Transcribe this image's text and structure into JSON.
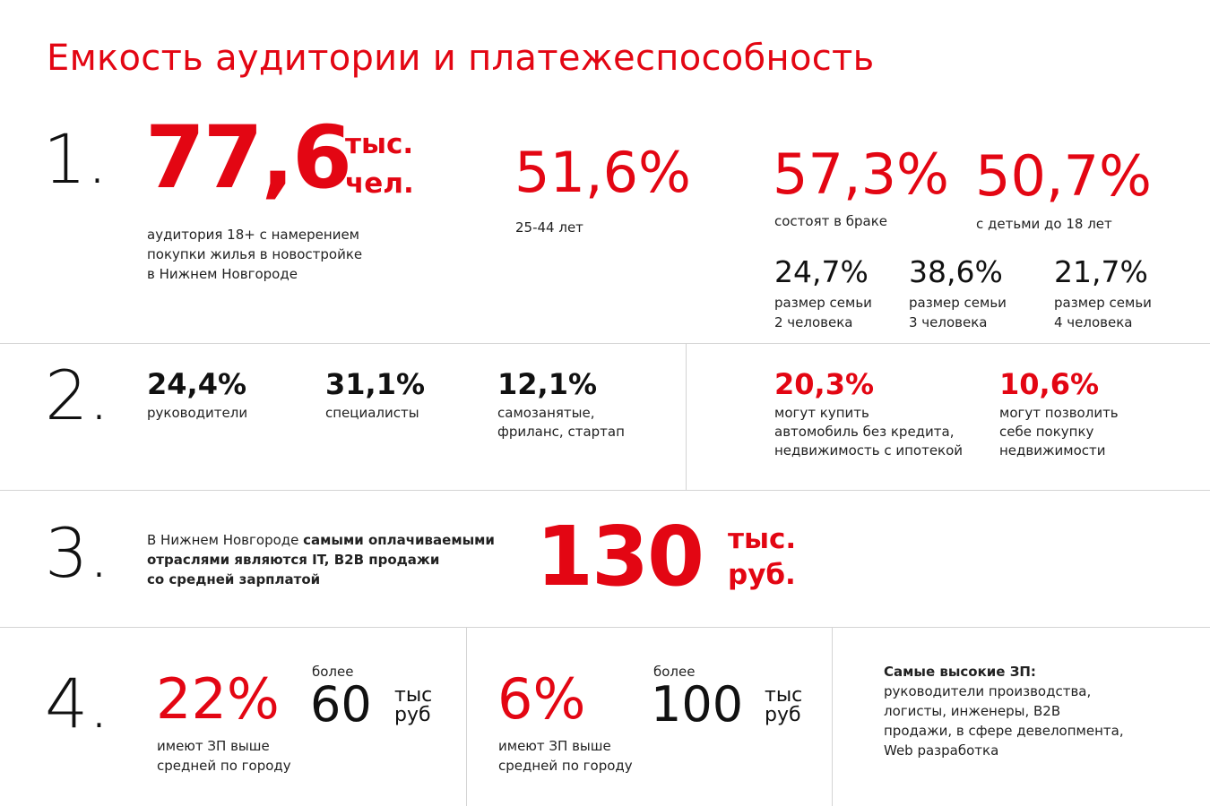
{
  "title": "Емкость аудитории и платежеспособность",
  "colors": {
    "accent": "#e30613",
    "text": "#1a1a1a",
    "divider": "#d4d4d4"
  },
  "sections": {
    "s1": {
      "number": "1.",
      "main_value": "77,6",
      "main_unit_line1": "тыс.",
      "main_unit_line2": "чел.",
      "main_caption": [
        "аудитория 18+ с намерением",
        "покупки жилья в новостройке",
        "в Нижнем Новгороде"
      ],
      "age_value": "51,6%",
      "age_caption": "25-44 лет",
      "married_value": "57,3%",
      "married_caption": "состоят в браке",
      "children_value": "50,7%",
      "children_caption": "с детьми до 18 лет",
      "family": [
        {
          "value": "24,7%",
          "line1": "размер семьи",
          "line2": "2 человека"
        },
        {
          "value": "38,6%",
          "line1": "размер семьи",
          "line2": "3 человека"
        },
        {
          "value": "21,7%",
          "line1": "размер семьи",
          "line2": "4 человека"
        }
      ]
    },
    "s2": {
      "number": "2.",
      "roles": [
        {
          "value": "24,4%",
          "line1": "руководители",
          "line2": ""
        },
        {
          "value": "31,1%",
          "line1": "специалисты",
          "line2": ""
        },
        {
          "value": "12,1%",
          "line1": "самозанятые,",
          "line2": "фриланс, стартап"
        }
      ],
      "buy": [
        {
          "value": "20,3%",
          "line1": "могут купить",
          "line2": "автомобиль без кредита,",
          "line3": "недвижимость с ипотекой"
        },
        {
          "value": "10,6%",
          "line1": "могут позволить",
          "line2": "себе покупку",
          "line3": "недвижимости"
        }
      ]
    },
    "s3": {
      "number": "3.",
      "text_line1_plain": "В Нижнем Новгороде ",
      "text_line1_bold": "самыми оплачиваемыми",
      "text_line2_bold": "отраслями являются IT, B2B продажи",
      "text_line3_bold": "со средней зарплатой",
      "value": "130",
      "unit_line1": "тыс.",
      "unit_line2": "руб."
    },
    "s4": {
      "number": "4.",
      "blocks": [
        {
          "percent": "22%",
          "caption1": "имеют ЗП выше",
          "caption2": "средней по городу",
          "more": "более",
          "amount": "60",
          "unit1": "тыс",
          "unit2": "руб"
        },
        {
          "percent": "6%",
          "caption1": "имеют ЗП выше",
          "caption2": "средней по городу",
          "more": "более",
          "amount": "100",
          "unit1": "тыс",
          "unit2": "руб"
        }
      ],
      "top_title": "Самые высокие ЗП:",
      "top_lines": [
        "руководители производства,",
        "логисты, инженеры, B2B",
        "продажи, в сфере девелопмента,",
        "Web разработка"
      ]
    }
  }
}
